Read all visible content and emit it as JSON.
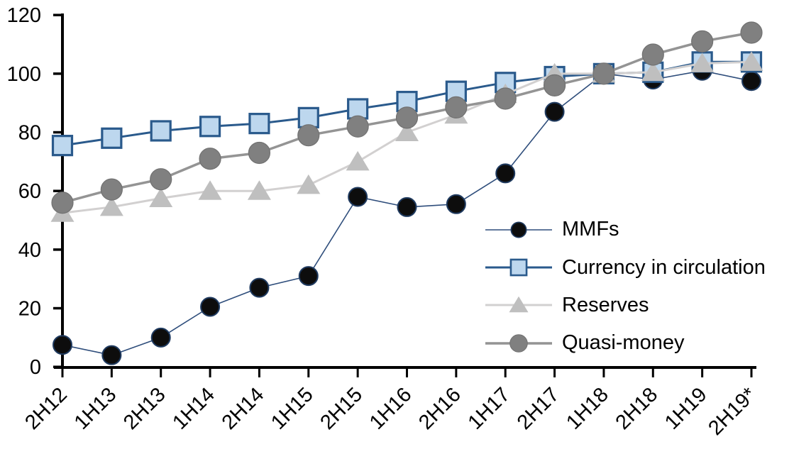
{
  "chart_data": {
    "type": "line",
    "title": "",
    "xlabel": "",
    "ylabel": "",
    "ylim": [
      0,
      120
    ],
    "yticks": [
      0,
      20,
      40,
      60,
      80,
      100,
      120
    ],
    "grid": false,
    "legend_position": "inside-right",
    "axis_color": "#000000",
    "categories": [
      "2H12",
      "1H13",
      "2H13",
      "1H14",
      "2H14",
      "1H15",
      "2H15",
      "1H16",
      "2H16",
      "1H17",
      "2H17",
      "1H18",
      "2H18",
      "1H19",
      "2H19*"
    ],
    "series": [
      {
        "name": "MMFs",
        "marker": "circle",
        "marker_fill": "#0d0d0d",
        "marker_stroke": "#1f3a5f",
        "line_color": "#2e4d7b",
        "line_width": 1.6,
        "values": [
          7.5,
          4,
          10,
          20.5,
          27,
          31,
          58,
          54.5,
          55.5,
          66,
          87,
          100,
          98,
          101,
          97.5
        ]
      },
      {
        "name": "Currency in circulation",
        "marker": "square",
        "marker_fill": "#bdd7ee",
        "marker_stroke": "#2a5a8c",
        "line_color": "#2a5a8c",
        "line_width": 3,
        "values": [
          75.5,
          78,
          80.5,
          82,
          83,
          85,
          88,
          90.5,
          94,
          97,
          99,
          100,
          100.5,
          104,
          104
        ]
      },
      {
        "name": "Reserves",
        "marker": "triangle",
        "marker_fill": "#bfbfbf",
        "marker_stroke": "#bfbfbf",
        "line_color": "#d2d0d0",
        "line_width": 3,
        "values": [
          52.5,
          54.5,
          57.5,
          60,
          60,
          62,
          70,
          80,
          86,
          93,
          100,
          100,
          100.5,
          103.5,
          104
        ]
      },
      {
        "name": "Quasi-money",
        "marker": "circle",
        "marker_fill": "#808080",
        "marker_stroke": "#717171",
        "line_color": "#949494",
        "line_width": 3.5,
        "values": [
          56,
          60.5,
          64,
          71,
          73,
          79,
          82,
          85,
          88.5,
          91.5,
          96,
          100,
          106.5,
          111,
          114
        ]
      }
    ]
  }
}
